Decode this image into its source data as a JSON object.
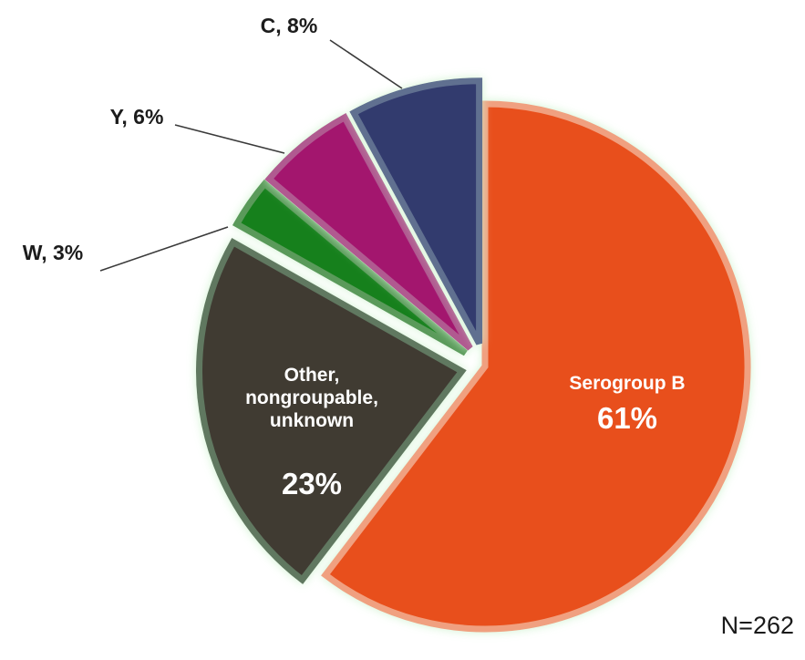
{
  "chart_data": {
    "type": "pie",
    "slices": [
      {
        "label": "Serogroup B",
        "value": 61,
        "value_label": "61%",
        "color": "#e8501c",
        "stroke": "#f0a080",
        "exploded": false,
        "label_position": "inside"
      },
      {
        "label": "Other, nongroupable, unknown",
        "label_lines": [
          "Other,",
          "nongroupable,",
          "unknown"
        ],
        "value": 23,
        "value_label": "23%",
        "color": "#3f3a33",
        "stroke": "#607860",
        "exploded": true,
        "label_position": "inside"
      },
      {
        "label": "W",
        "value": 3,
        "value_label": "W, 3%",
        "color": "#17801c",
        "stroke": "#5a9a5a",
        "exploded": true,
        "label_position": "outside"
      },
      {
        "label": "Y",
        "value": 6,
        "value_label": "Y, 6%",
        "color": "#a3146e",
        "stroke": "#b05a90",
        "exploded": true,
        "label_position": "outside"
      },
      {
        "label": "C",
        "value": 8,
        "value_label": "C, 8%",
        "color": "#323a6e",
        "stroke": "#607090",
        "exploded": true,
        "label_position": "outside"
      }
    ],
    "start": "12 o'clock, clockwise",
    "annotation": "N=262",
    "glow_color": "#ccf2cc"
  }
}
